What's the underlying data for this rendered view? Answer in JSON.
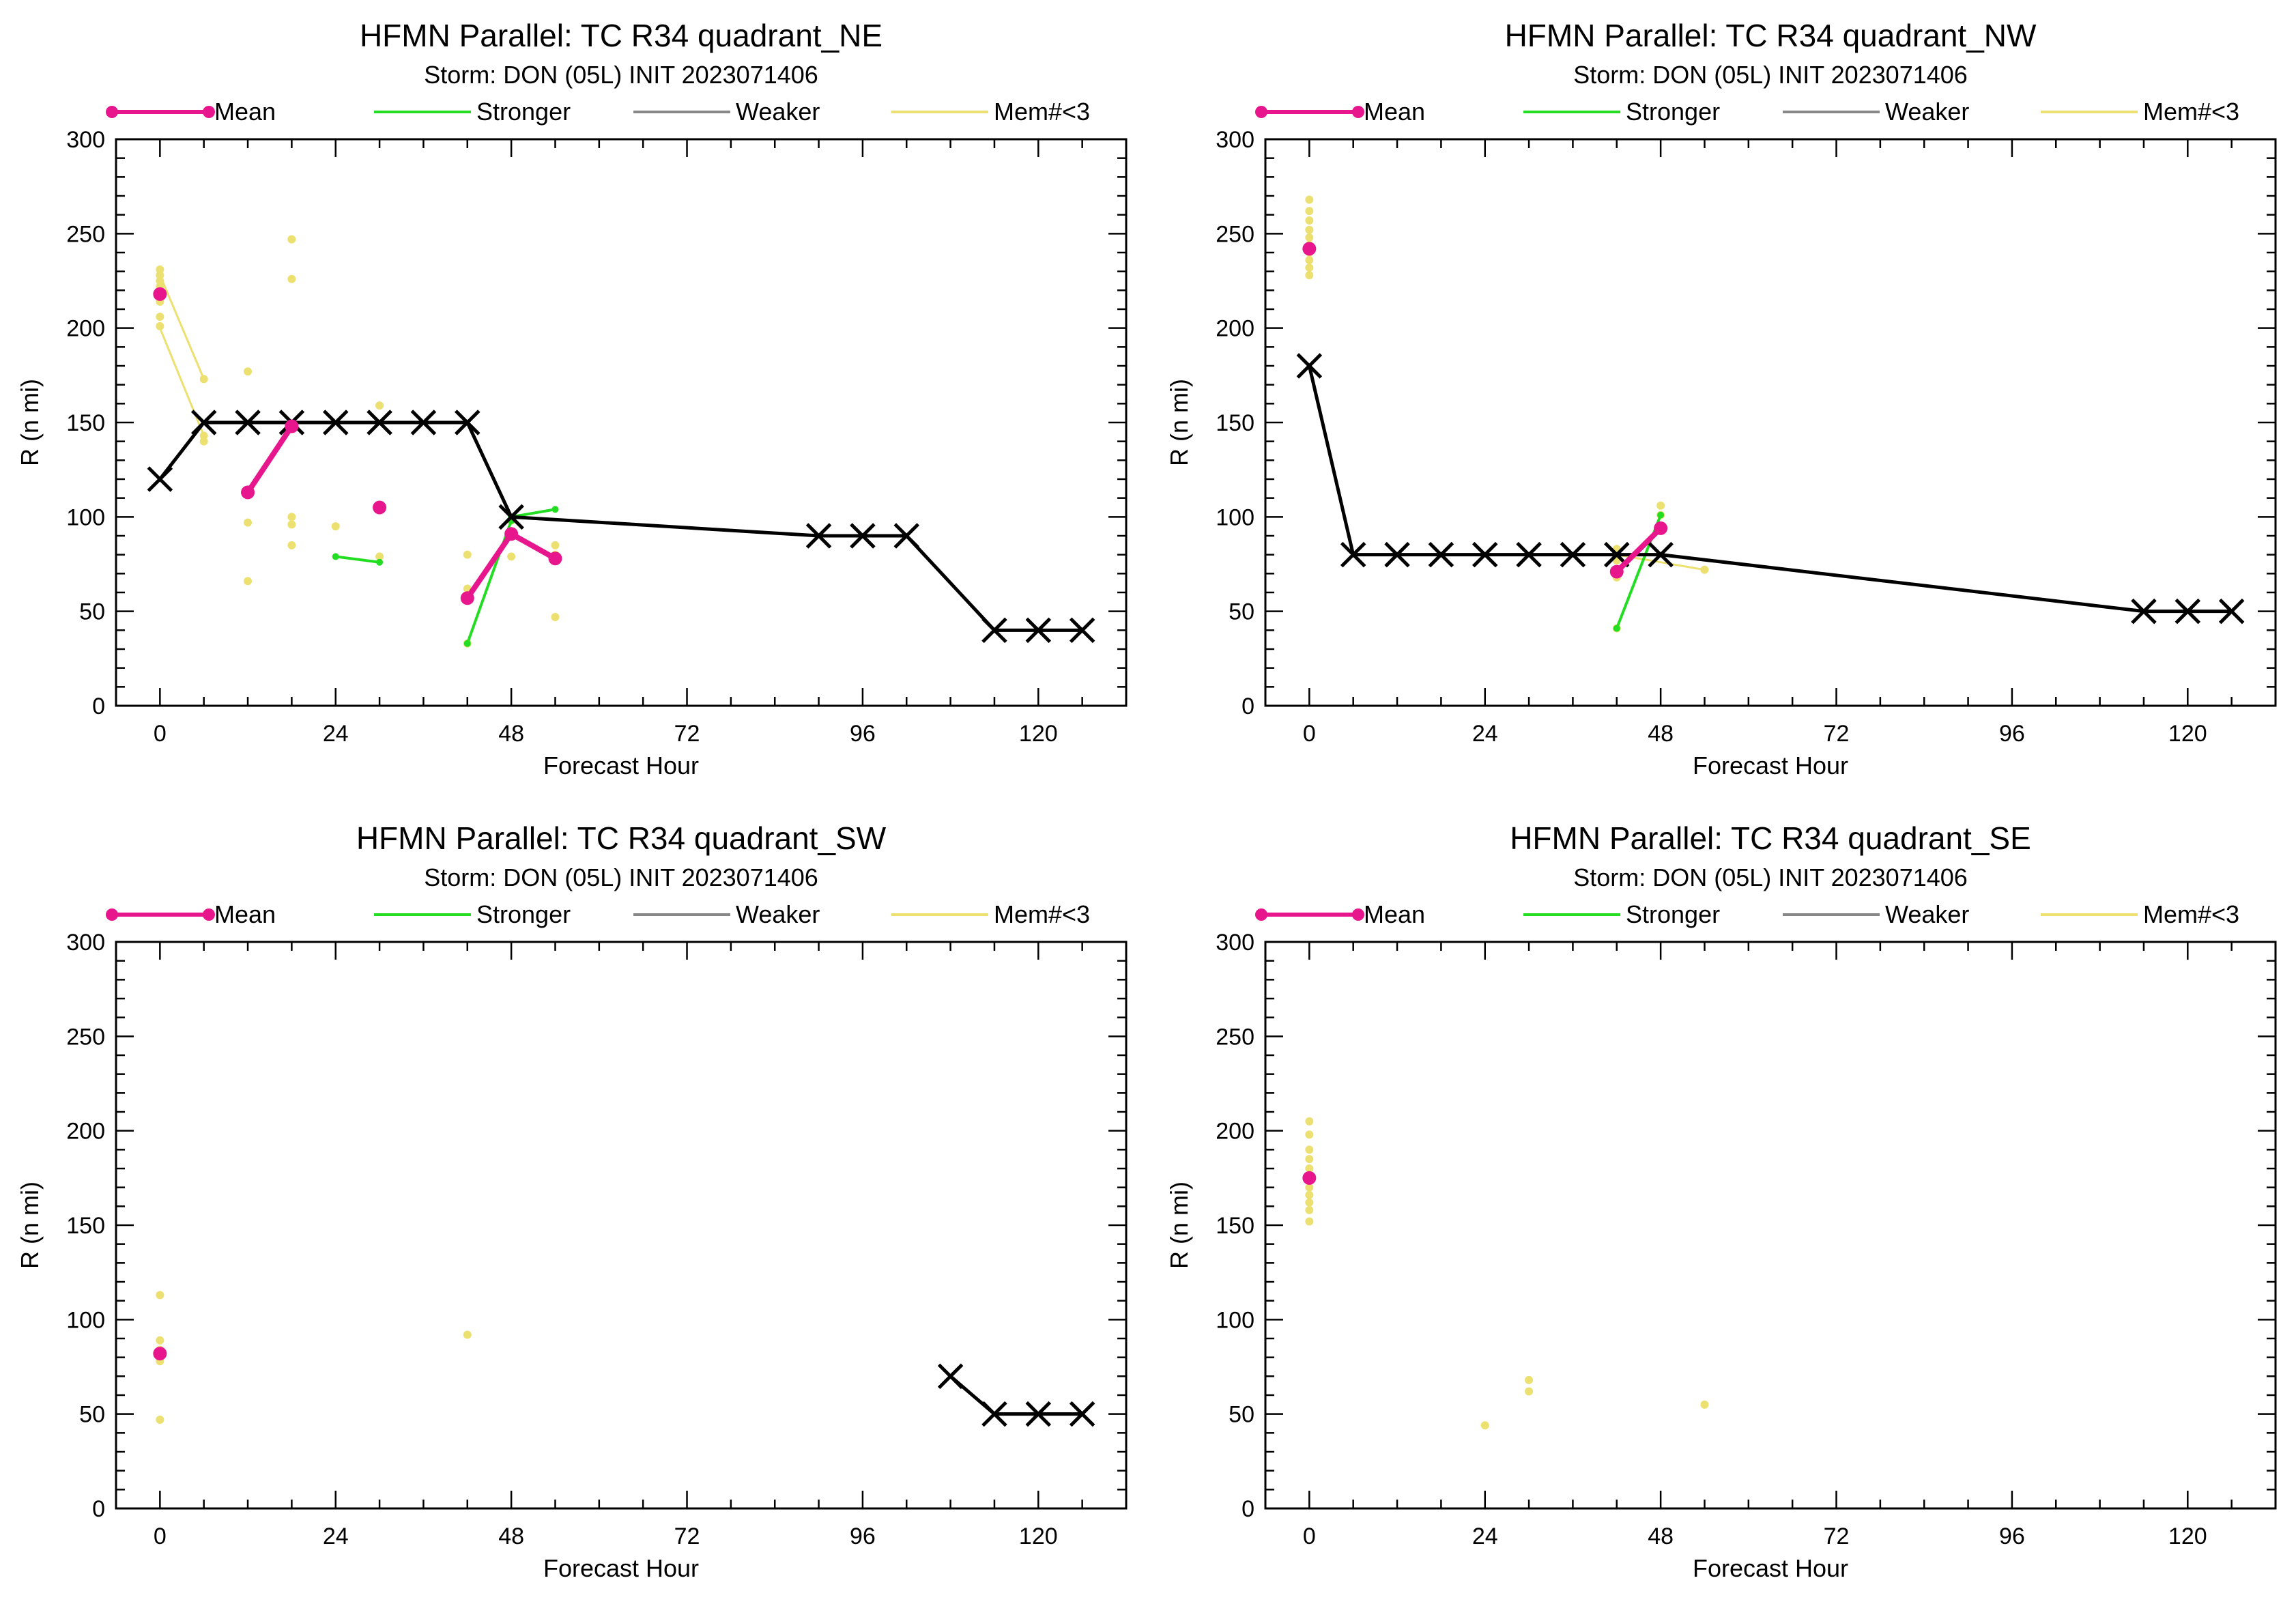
{
  "legend": {
    "mean": "Mean",
    "stronger": "Stronger",
    "weaker": "Weaker",
    "mem": "Mem#<3"
  },
  "colors": {
    "mean": "#e8168c",
    "stronger": "#22dd22",
    "weaker": "#888888",
    "mem": "#ece070",
    "best_track": "#000000"
  },
  "chart_data": [
    {
      "type": "line",
      "id": "ne",
      "title": "HFMN Parallel: TC  R34 quadrant_NE",
      "subtitle": "Storm: DON (05L) INIT 2023071406",
      "xlabel": "Forecast Hour",
      "ylabel": "R (n mi)",
      "xlim": [
        -6,
        132
      ],
      "ylim": [
        0,
        300
      ],
      "xticks": [
        0,
        24,
        48,
        72,
        96,
        120
      ],
      "yticks": [
        0,
        50,
        100,
        150,
        200,
        250,
        300
      ],
      "best_track": [
        [
          0,
          120
        ],
        [
          6,
          150
        ],
        [
          12,
          150
        ],
        [
          18,
          150
        ],
        [
          24,
          150
        ],
        [
          30,
          150
        ],
        [
          36,
          150
        ],
        [
          42,
          150
        ],
        [
          48,
          100
        ],
        [
          90,
          90
        ],
        [
          96,
          90
        ],
        [
          102,
          90
        ],
        [
          114,
          40
        ],
        [
          120,
          40
        ],
        [
          126,
          40
        ]
      ],
      "mean_segments": [
        [
          [
            0,
            218
          ]
        ],
        [
          [
            12,
            113
          ],
          [
            18,
            148
          ]
        ],
        [
          [
            30,
            105
          ]
        ],
        [
          [
            42,
            57
          ],
          [
            48,
            91
          ],
          [
            54,
            78
          ]
        ]
      ],
      "stronger_segments": [
        [
          [
            24,
            79
          ],
          [
            30,
            76
          ]
        ],
        [
          [
            42,
            33
          ],
          [
            48,
            98
          ]
        ],
        [
          [
            48,
            100
          ],
          [
            54,
            104
          ]
        ]
      ],
      "mem_segments": [
        [
          [
            0,
            228
          ],
          [
            6,
            173
          ]
        ],
        [
          [
            0,
            200
          ],
          [
            6,
            143
          ]
        ]
      ],
      "mem_points": [
        [
          0,
          231
        ],
        [
          0,
          228
        ],
        [
          0,
          225
        ],
        [
          0,
          222
        ],
        [
          0,
          219
        ],
        [
          0,
          214
        ],
        [
          0,
          206
        ],
        [
          0,
          201
        ],
        [
          6,
          173
        ],
        [
          6,
          143
        ],
        [
          6,
          140
        ],
        [
          12,
          177
        ],
        [
          12,
          97
        ],
        [
          12,
          66
        ],
        [
          18,
          247
        ],
        [
          18,
          226
        ],
        [
          18,
          100
        ],
        [
          18,
          96
        ],
        [
          18,
          85
        ],
        [
          24,
          95
        ],
        [
          30,
          159
        ],
        [
          30,
          79
        ],
        [
          42,
          80
        ],
        [
          42,
          62
        ],
        [
          42,
          33
        ],
        [
          48,
          98
        ],
        [
          48,
          79
        ],
        [
          54,
          85
        ],
        [
          54,
          80
        ],
        [
          54,
          47
        ]
      ]
    },
    {
      "type": "line",
      "id": "nw",
      "title": "HFMN Parallel: TC  R34 quadrant_NW",
      "subtitle": "Storm: DON (05L) INIT 2023071406",
      "xlabel": "Forecast Hour",
      "ylabel": "R (n mi)",
      "xlim": [
        -6,
        132
      ],
      "ylim": [
        0,
        300
      ],
      "xticks": [
        0,
        24,
        48,
        72,
        96,
        120
      ],
      "yticks": [
        0,
        50,
        100,
        150,
        200,
        250,
        300
      ],
      "best_track": [
        [
          0,
          180
        ],
        [
          6,
          80
        ],
        [
          12,
          80
        ],
        [
          18,
          80
        ],
        [
          24,
          80
        ],
        [
          30,
          80
        ],
        [
          36,
          80
        ],
        [
          42,
          80
        ],
        [
          48,
          80
        ],
        [
          114,
          50
        ],
        [
          120,
          50
        ],
        [
          126,
          50
        ]
      ],
      "mean_segments": [
        [
          [
            0,
            242
          ]
        ],
        [
          [
            42,
            71
          ],
          [
            48,
            94
          ]
        ]
      ],
      "stronger_segments": [
        [
          [
            42,
            41
          ],
          [
            48,
            101
          ]
        ]
      ],
      "mem_segments": [
        [
          [
            42,
            80
          ],
          [
            54,
            72
          ]
        ]
      ],
      "mem_points": [
        [
          0,
          268
        ],
        [
          0,
          262
        ],
        [
          0,
          257
        ],
        [
          0,
          252
        ],
        [
          0,
          248
        ],
        [
          0,
          244
        ],
        [
          0,
          240
        ],
        [
          0,
          236
        ],
        [
          0,
          232
        ],
        [
          0,
          228
        ],
        [
          42,
          83
        ],
        [
          42,
          77
        ],
        [
          42,
          72
        ],
        [
          42,
          68
        ],
        [
          42,
          41
        ],
        [
          48,
          106
        ],
        [
          48,
          101
        ],
        [
          54,
          72
        ]
      ]
    },
    {
      "type": "line",
      "id": "sw",
      "title": "HFMN Parallel: TC  R34 quadrant_SW",
      "subtitle": "Storm: DON (05L) INIT 2023071406",
      "xlabel": "Forecast Hour",
      "ylabel": "R (n mi)",
      "xlim": [
        -6,
        132
      ],
      "ylim": [
        0,
        300
      ],
      "xticks": [
        0,
        24,
        48,
        72,
        96,
        120
      ],
      "yticks": [
        0,
        50,
        100,
        150,
        200,
        250,
        300
      ],
      "best_track": [
        [
          108,
          70
        ],
        [
          114,
          50
        ],
        [
          120,
          50
        ],
        [
          126,
          50
        ]
      ],
      "mean_segments": [
        [
          [
            0,
            82
          ]
        ]
      ],
      "stronger_segments": [],
      "mem_segments": [],
      "mem_points": [
        [
          0,
          113
        ],
        [
          0,
          89
        ],
        [
          0,
          84
        ],
        [
          0,
          80
        ],
        [
          0,
          78
        ],
        [
          0,
          47
        ],
        [
          42,
          92
        ]
      ]
    },
    {
      "type": "line",
      "id": "se",
      "title": "HFMN Parallel: TC  R34 quadrant_SE",
      "subtitle": "Storm: DON (05L) INIT 2023071406",
      "xlabel": "Forecast Hour",
      "ylabel": "R (n mi)",
      "xlim": [
        -6,
        132
      ],
      "ylim": [
        0,
        300
      ],
      "xticks": [
        0,
        24,
        48,
        72,
        96,
        120
      ],
      "yticks": [
        0,
        50,
        100,
        150,
        200,
        250,
        300
      ],
      "best_track": [],
      "mean_segments": [
        [
          [
            0,
            175
          ]
        ]
      ],
      "stronger_segments": [],
      "mem_segments": [],
      "mem_points": [
        [
          0,
          205
        ],
        [
          0,
          198
        ],
        [
          0,
          190
        ],
        [
          0,
          185
        ],
        [
          0,
          180
        ],
        [
          0,
          170
        ],
        [
          0,
          166
        ],
        [
          0,
          162
        ],
        [
          0,
          158
        ],
        [
          0,
          152
        ],
        [
          24,
          44
        ],
        [
          30,
          68
        ],
        [
          30,
          62
        ],
        [
          54,
          55
        ]
      ]
    }
  ]
}
